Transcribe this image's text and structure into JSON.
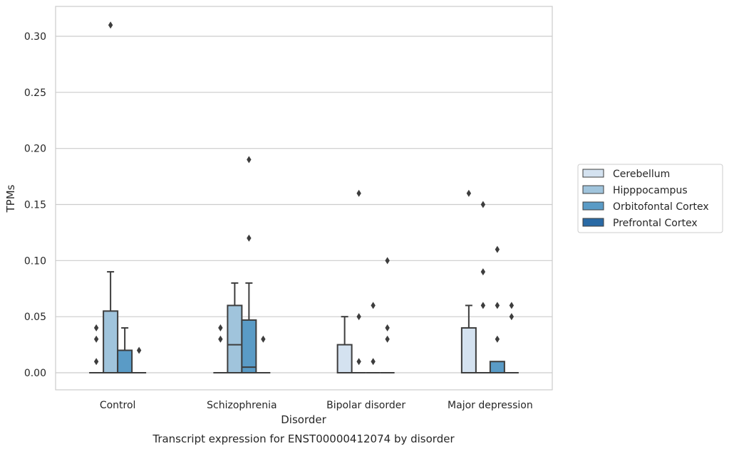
{
  "chart_data": {
    "type": "box",
    "title": "",
    "caption": "Transcript expression for ENST00000412074 by disorder",
    "xlabel": "Disorder",
    "ylabel": "TPMs",
    "ylim": [
      -0.015,
      0.326
    ],
    "yticks": [
      "0.00",
      "0.05",
      "0.10",
      "0.15",
      "0.20",
      "0.25",
      "0.30"
    ],
    "ytick_values": [
      0,
      0.05,
      0.1,
      0.15,
      0.2,
      0.25,
      0.3
    ],
    "categories": [
      "Control",
      "Schizophrenia",
      "Bipolar disorder",
      "Major depression"
    ],
    "grid": "horizontal",
    "legend_position": "right",
    "series": [
      {
        "name": "Cerebellum",
        "color": "#d4e2f0",
        "boxes": [
          {
            "q1": 0,
            "median": 0,
            "q3": 0,
            "whislo": 0,
            "whishi": 0,
            "fliers": [
              0.01,
              0.03,
              0.04
            ]
          },
          {
            "q1": 0,
            "median": 0,
            "q3": 0,
            "whislo": 0,
            "whishi": 0,
            "fliers": [
              0.03,
              0.04
            ]
          },
          {
            "q1": 0,
            "median": 0,
            "q3": 0.025,
            "whislo": 0,
            "whishi": 0.05,
            "fliers": []
          },
          {
            "q1": 0,
            "median": 0,
            "q3": 0.04,
            "whislo": 0,
            "whishi": 0.06,
            "fliers": [
              0.16
            ]
          }
        ]
      },
      {
        "name": "Hipppocampus",
        "color": "#a0c4dc",
        "boxes": [
          {
            "q1": 0,
            "median": 0,
            "q3": 0.055,
            "whislo": 0,
            "whishi": 0.09,
            "fliers": [
              0.31
            ]
          },
          {
            "q1": 0,
            "median": 0.025,
            "q3": 0.06,
            "whislo": 0,
            "whishi": 0.08,
            "fliers": []
          },
          {
            "q1": 0,
            "median": 0,
            "q3": 0,
            "whislo": 0,
            "whishi": 0,
            "fliers": [
              0.01,
              0.05,
              0.16
            ]
          },
          {
            "q1": 0,
            "median": 0,
            "q3": 0,
            "whislo": 0,
            "whishi": 0,
            "fliers": [
              0.06,
              0.09,
              0.15
            ]
          }
        ]
      },
      {
        "name": "Orbitofontal Cortex",
        "color": "#5a9bc6",
        "boxes": [
          {
            "q1": 0,
            "median": 0,
            "q3": 0.02,
            "whislo": 0,
            "whishi": 0.04,
            "fliers": []
          },
          {
            "q1": 0,
            "median": 0.005,
            "q3": 0.047,
            "whislo": 0,
            "whishi": 0.08,
            "fliers": [
              0.12,
              0.19
            ]
          },
          {
            "q1": 0,
            "median": 0,
            "q3": 0,
            "whislo": 0,
            "whishi": 0,
            "fliers": [
              0.01,
              0.06
            ]
          },
          {
            "q1": 0,
            "median": 0,
            "q3": 0.01,
            "whislo": 0,
            "whishi": 0.01,
            "fliers": [
              0.03,
              0.06,
              0.11
            ]
          }
        ]
      },
      {
        "name": "Prefrontal Cortex",
        "color": "#2a6aa5",
        "boxes": [
          {
            "q1": 0,
            "median": 0,
            "q3": 0,
            "whislo": 0,
            "whishi": 0,
            "fliers": [
              0.02
            ]
          },
          {
            "q1": 0,
            "median": 0,
            "q3": 0,
            "whislo": 0,
            "whishi": 0,
            "fliers": [
              0.03
            ]
          },
          {
            "q1": 0,
            "median": 0,
            "q3": 0,
            "whislo": 0,
            "whishi": 0,
            "fliers": [
              0.03,
              0.04,
              0.1
            ]
          },
          {
            "q1": 0,
            "median": 0,
            "q3": 0,
            "whislo": 0,
            "whishi": 0,
            "fliers": [
              0.05,
              0.06
            ]
          }
        ]
      }
    ]
  }
}
